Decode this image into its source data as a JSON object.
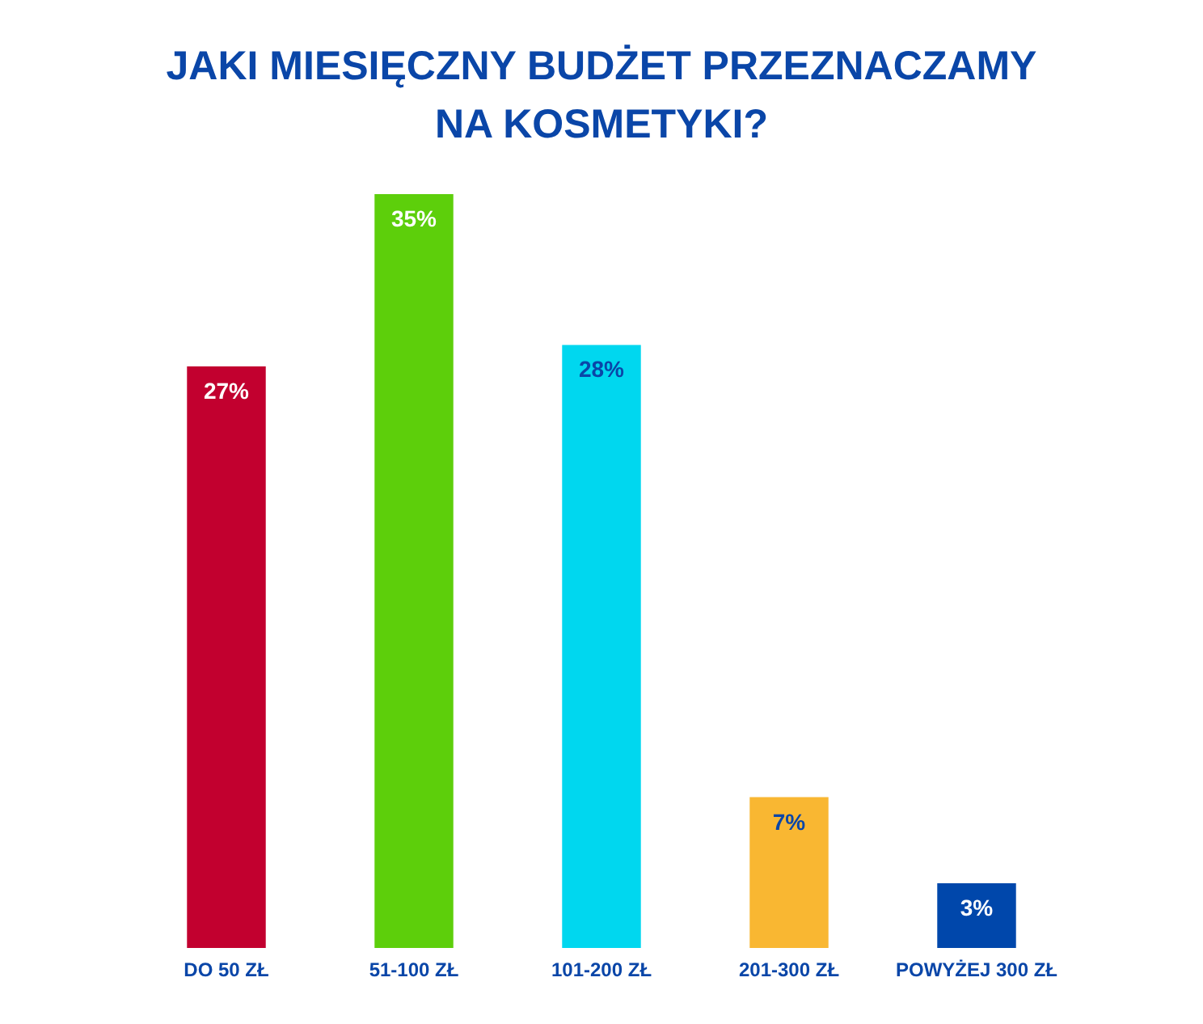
{
  "chart_data": {
    "type": "bar",
    "title": "JAKI MIESIĘCZNY BUDŻET PRZEZNACZAMY NA KOSMETYKI?",
    "categories": [
      "DO 50 ZŁ",
      "51-100 ZŁ",
      "101-200 ZŁ",
      "201-300 ZŁ",
      "POWYŻEJ 300 ZŁ"
    ],
    "values": [
      27,
      35,
      28,
      7,
      3
    ],
    "value_labels": [
      "27%",
      "35%",
      "28%",
      "7%",
      "3%"
    ],
    "colors": [
      "#c2002f",
      "#5dcf0b",
      "#00d7ef",
      "#f9b732",
      "#0047ab"
    ],
    "grid": false
  }
}
